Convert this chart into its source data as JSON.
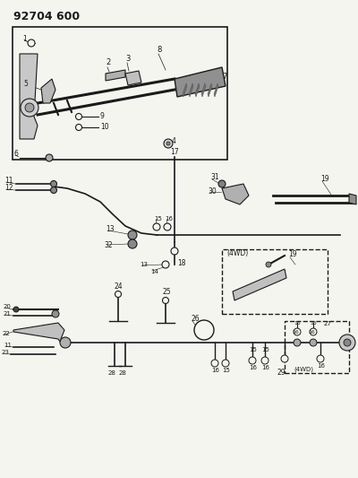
{
  "title": "92704 600",
  "bg_color": "#f5f5f0",
  "line_color": "#1a1a1a",
  "fig_width": 4.0,
  "fig_height": 5.33,
  "dpi": 100
}
